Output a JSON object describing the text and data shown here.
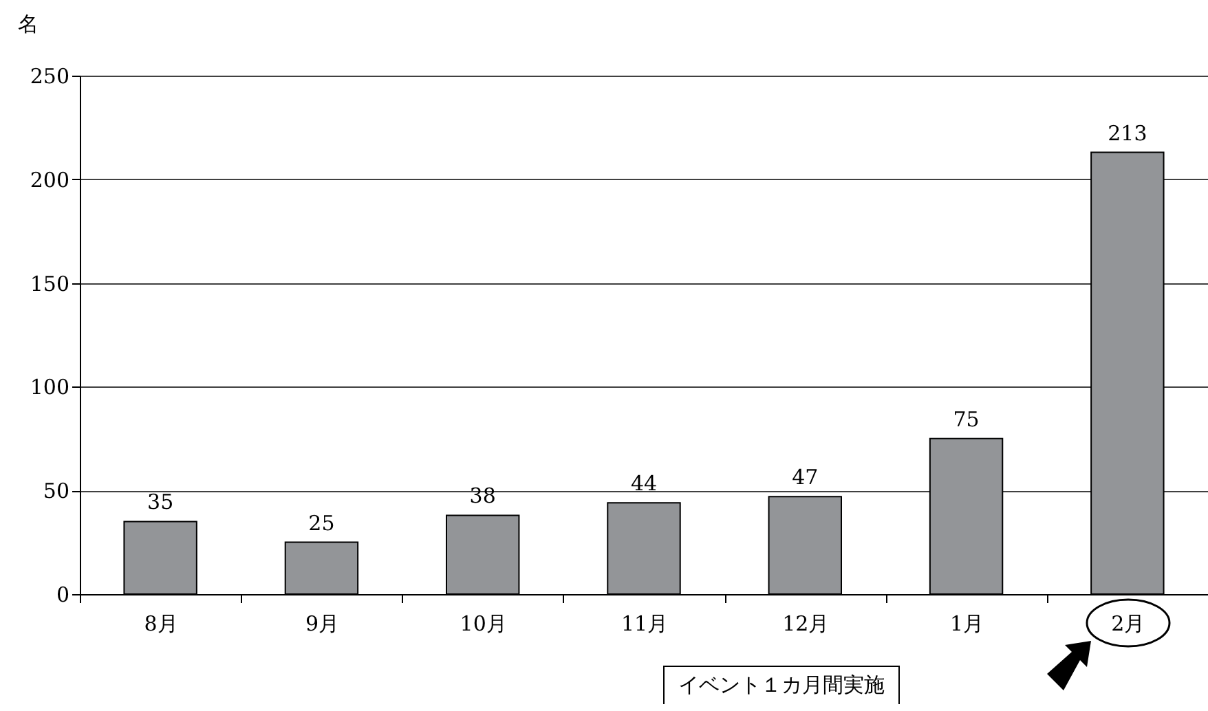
{
  "chart_data": {
    "type": "bar",
    "ylabel": "名",
    "categories": [
      "8月",
      "9月",
      "10月",
      "11月",
      "12月",
      "1月",
      "2月"
    ],
    "values": [
      35,
      25,
      38,
      44,
      47,
      75,
      213
    ],
    "color": "#939598",
    "ylim": [
      0,
      250
    ],
    "yticks": [
      0,
      50,
      100,
      150,
      200,
      250
    ],
    "grid": "y",
    "data_labels": true,
    "annotations": [
      "イベント１カ月間実施"
    ]
  }
}
